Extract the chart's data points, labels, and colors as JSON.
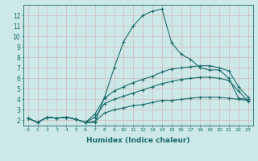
{
  "xlabel": "Humidex (Indice chaleur)",
  "bg_color": "#cce8e8",
  "line_color": "#1a6b6b",
  "grid_color": "#c0d8d8",
  "xlim": [
    -0.5,
    23.5
  ],
  "ylim": [
    1.5,
    13.0
  ],
  "xticks": [
    0,
    1,
    2,
    3,
    4,
    5,
    6,
    7,
    8,
    9,
    10,
    11,
    12,
    13,
    14,
    15,
    16,
    17,
    18,
    19,
    20,
    21,
    22,
    23
  ],
  "yticks": [
    2,
    3,
    4,
    5,
    6,
    7,
    8,
    9,
    10,
    11,
    12
  ],
  "line1_x": [
    0,
    1,
    2,
    3,
    4,
    5,
    6,
    7,
    8,
    9,
    10,
    11,
    12,
    13,
    14,
    15,
    16,
    17,
    18,
    19,
    20,
    21,
    22,
    23
  ],
  "line1_y": [
    2.2,
    1.8,
    2.3,
    2.2,
    2.3,
    2.1,
    1.8,
    1.8,
    4.2,
    7.0,
    9.5,
    11.0,
    12.0,
    12.4,
    12.6,
    9.4,
    8.3,
    7.8,
    7.0,
    6.8,
    6.8,
    6.0,
    4.1,
    4.0
  ],
  "line2_x": [
    0,
    1,
    2,
    3,
    4,
    5,
    6,
    7,
    8,
    9,
    10,
    11,
    12,
    13,
    14,
    15,
    16,
    17,
    18,
    19,
    20,
    21,
    22,
    23
  ],
  "line2_y": [
    2.2,
    1.8,
    2.3,
    2.2,
    2.3,
    2.1,
    1.8,
    2.6,
    4.1,
    4.8,
    5.2,
    5.6,
    5.9,
    6.2,
    6.6,
    6.9,
    7.0,
    7.1,
    7.2,
    7.2,
    7.0,
    6.7,
    5.2,
    4.2
  ],
  "line3_x": [
    0,
    1,
    2,
    3,
    4,
    5,
    6,
    7,
    8,
    9,
    10,
    11,
    12,
    13,
    14,
    15,
    16,
    17,
    18,
    19,
    20,
    21,
    22,
    23
  ],
  "line3_y": [
    2.2,
    1.8,
    2.3,
    2.2,
    2.3,
    2.1,
    1.8,
    2.3,
    3.6,
    4.0,
    4.3,
    4.6,
    4.9,
    5.2,
    5.5,
    5.7,
    5.9,
    6.0,
    6.1,
    6.1,
    6.0,
    5.8,
    4.8,
    3.8
  ],
  "line4_x": [
    0,
    1,
    2,
    3,
    4,
    5,
    6,
    7,
    8,
    9,
    10,
    11,
    12,
    13,
    14,
    15,
    16,
    17,
    18,
    19,
    20,
    21,
    22,
    23
  ],
  "line4_y": [
    2.2,
    1.8,
    2.3,
    2.2,
    2.3,
    2.1,
    1.8,
    1.9,
    2.7,
    3.0,
    3.2,
    3.4,
    3.5,
    3.7,
    3.9,
    3.9,
    4.0,
    4.1,
    4.2,
    4.2,
    4.2,
    4.1,
    4.0,
    3.9
  ]
}
